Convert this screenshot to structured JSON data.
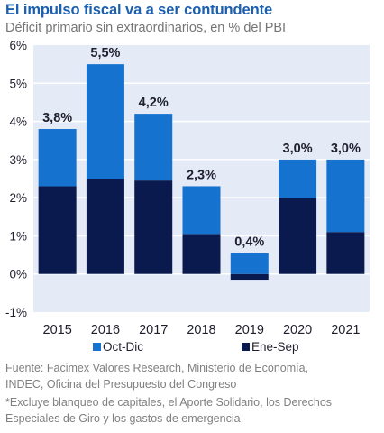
{
  "title": "El impulso fiscal va a ser contundente",
  "subtitle": "Déficit primario sin extraordinarios, en % del PBI",
  "colors": {
    "title": "#1a5fb0",
    "oct_dic": "#1572cf",
    "ene_sep": "#0a1a4e",
    "plot_bg": "#e4ebf7"
  },
  "chart_data": {
    "type": "bar",
    "stacked": true,
    "categories": [
      "2015",
      "2016",
      "2017",
      "2018",
      "2019",
      "2020",
      "2021"
    ],
    "series": [
      {
        "name": "Ene-Sep",
        "values": [
          2.3,
          2.5,
          2.45,
          1.05,
          -0.15,
          2.0,
          1.1
        ]
      },
      {
        "name": "Oct-Dic",
        "values": [
          1.5,
          3.0,
          1.75,
          1.25,
          0.55,
          1.0,
          1.9
        ]
      }
    ],
    "totals": [
      3.8,
      5.5,
      4.2,
      2.3,
      0.4,
      3.0,
      3.0
    ],
    "data_labels": [
      "3,8%",
      "5,5%",
      "4,2%",
      "2,3%",
      "0,4%",
      "3,0%",
      "3,0%"
    ],
    "yticks": [
      "-1%",
      "0%",
      "1%",
      "2%",
      "3%",
      "4%",
      "5%",
      "6%"
    ],
    "ylim": [
      -1,
      6
    ],
    "grid": true,
    "legend_position": "bottom"
  },
  "legend": [
    {
      "label": "Oct-Dic",
      "color": "#1572cf"
    },
    {
      "label": "Ene-Sep",
      "color": "#0a1a4e"
    }
  ],
  "source": {
    "label": "Fuente",
    "line1": ": Facimex Valores Research, Ministerio de Economía,",
    "line2": "INDEC, Oficina del Presupuesto del Congreso"
  },
  "note": {
    "line1": "*Excluye blanqueo de capitales, el Aporte Solidario, los Derechos",
    "line2": "Especiales de Giro y los gastos de emergencia"
  }
}
